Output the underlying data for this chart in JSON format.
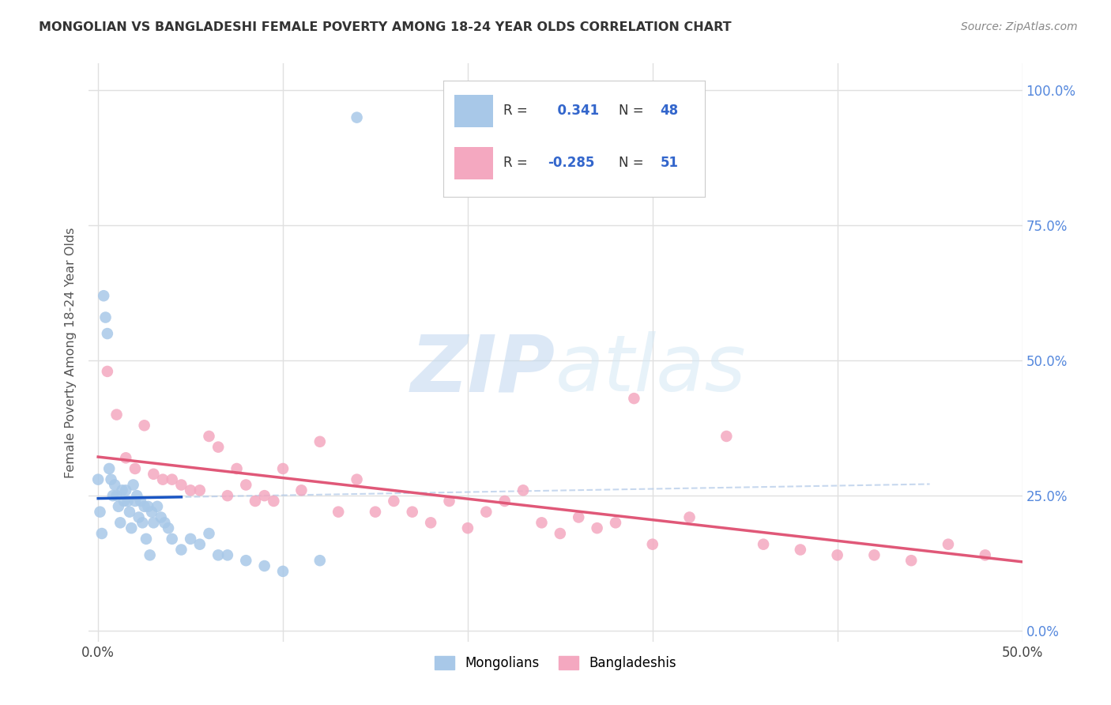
{
  "title": "MONGOLIAN VS BANGLADESHI FEMALE POVERTY AMONG 18-24 YEAR OLDS CORRELATION CHART",
  "source": "Source: ZipAtlas.com",
  "ylabel": "Female Poverty Among 18-24 Year Olds",
  "xlim": [
    -0.5,
    50.0
  ],
  "ylim": [
    -2.0,
    105.0
  ],
  "x_tick_positions": [
    0,
    10,
    20,
    30,
    40,
    50
  ],
  "x_tick_labels": [
    "0.0%",
    "",
    "",
    "",
    "",
    "50.0%"
  ],
  "y_tick_positions": [
    0,
    25,
    50,
    75,
    100
  ],
  "y_tick_labels_right": [
    "0.0%",
    "25.0%",
    "50.0%",
    "75.0%",
    "100.0%"
  ],
  "mongolian_R": 0.341,
  "mongolian_N": 48,
  "bangladeshi_R": -0.285,
  "bangladeshi_N": 51,
  "mongolian_color": "#a8c8e8",
  "bangladeshi_color": "#f4a8c0",
  "mongolian_line_color": "#1a56c4",
  "bangladeshi_line_color": "#e05878",
  "mongolian_scatter_x": [
    0.0,
    0.1,
    0.2,
    0.3,
    0.4,
    0.5,
    0.6,
    0.7,
    0.8,
    0.9,
    1.0,
    1.1,
    1.2,
    1.3,
    1.4,
    1.5,
    1.6,
    1.7,
    1.8,
    1.9,
    2.0,
    2.1,
    2.2,
    2.3,
    2.4,
    2.5,
    2.6,
    2.7,
    2.8,
    2.9,
    3.0,
    3.2,
    3.4,
    3.6,
    3.8,
    4.0,
    4.5,
    5.0,
    5.5,
    6.0,
    6.5,
    7.0,
    8.0,
    9.0,
    10.0,
    12.0,
    14.0
  ],
  "mongolian_scatter_y": [
    28.0,
    22.0,
    18.0,
    62.0,
    58.0,
    55.0,
    30.0,
    28.0,
    25.0,
    27.0,
    25.0,
    23.0,
    20.0,
    26.0,
    24.0,
    26.0,
    24.0,
    22.0,
    19.0,
    27.0,
    24.0,
    25.0,
    21.0,
    24.0,
    20.0,
    23.0,
    17.0,
    23.0,
    14.0,
    22.0,
    20.0,
    23.0,
    21.0,
    20.0,
    19.0,
    17.0,
    15.0,
    17.0,
    16.0,
    18.0,
    14.0,
    14.0,
    13.0,
    12.0,
    11.0,
    13.0,
    95.0
  ],
  "bangladeshi_scatter_x": [
    0.5,
    1.0,
    1.5,
    2.0,
    2.5,
    3.0,
    3.5,
    4.0,
    4.5,
    5.0,
    5.5,
    6.0,
    6.5,
    7.0,
    7.5,
    8.0,
    8.5,
    9.0,
    9.5,
    10.0,
    11.0,
    12.0,
    13.0,
    14.0,
    15.0,
    16.0,
    17.0,
    18.0,
    19.0,
    20.0,
    21.0,
    22.0,
    23.0,
    24.0,
    25.0,
    26.0,
    27.0,
    28.0,
    29.0,
    30.0,
    32.0,
    34.0,
    36.0,
    38.0,
    40.0,
    42.0,
    44.0,
    46.0,
    48.0
  ],
  "bangladeshi_scatter_y": [
    48.0,
    40.0,
    32.0,
    30.0,
    38.0,
    29.0,
    28.0,
    28.0,
    27.0,
    26.0,
    26.0,
    36.0,
    34.0,
    25.0,
    30.0,
    27.0,
    24.0,
    25.0,
    24.0,
    30.0,
    26.0,
    35.0,
    22.0,
    28.0,
    22.0,
    24.0,
    22.0,
    20.0,
    24.0,
    19.0,
    22.0,
    24.0,
    26.0,
    20.0,
    18.0,
    21.0,
    19.0,
    20.0,
    43.0,
    16.0,
    21.0,
    36.0,
    16.0,
    15.0,
    14.0,
    14.0,
    13.0,
    16.0,
    14.0
  ],
  "watermark_zip": "ZIP",
  "watermark_atlas": "atlas",
  "background_color": "#ffffff",
  "grid_color": "#e0e0e0",
  "legend_box_color": "#e8f0f8",
  "legend_text_color": "#3366cc"
}
